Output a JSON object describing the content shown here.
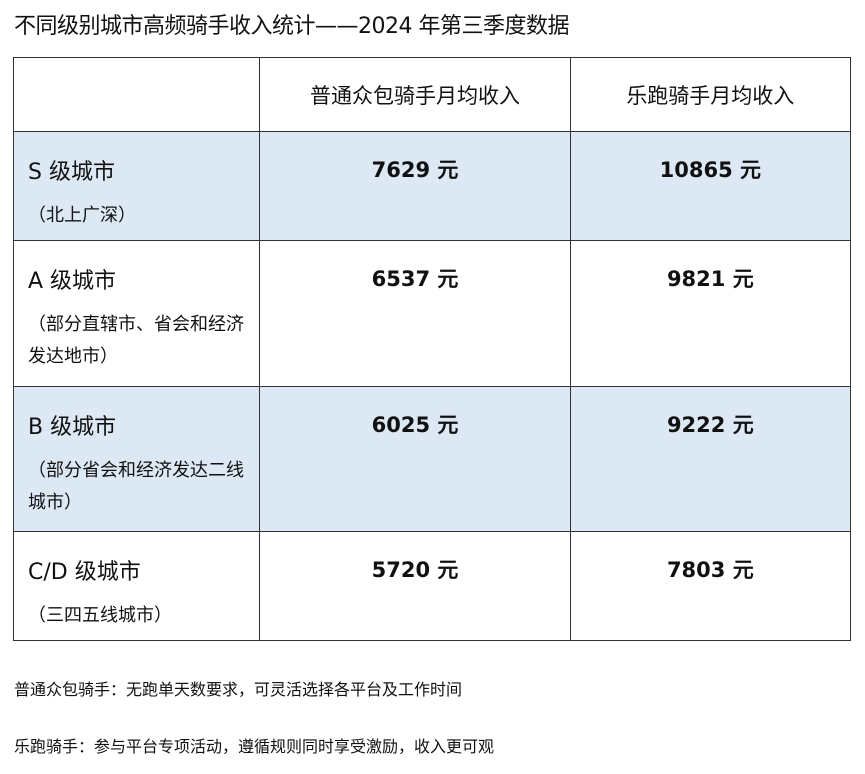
{
  "title": "不同级别城市高频骑手收入统计——2024 年第三季度数据",
  "table": {
    "headers": [
      "",
      "普通众包骑手月均收入",
      "乐跑骑手月均收入"
    ],
    "rows": [
      {
        "city": "S 级城市",
        "desc": "（北上广深）",
        "normal": "7629 元",
        "lepao": "10865 元",
        "highlight": true
      },
      {
        "city": "A 级城市",
        "desc": "（部分直辖市、省会和经济发达地市）",
        "normal": "6537 元",
        "lepao": "9821 元",
        "highlight": false
      },
      {
        "city": "B 级城市",
        "desc": "（部分省会和经济发达二线城市）",
        "normal": "6025 元",
        "lepao": "9222 元",
        "highlight": true
      },
      {
        "city": "C/D 级城市",
        "desc": "（三四五线城市）",
        "normal": "5720 元",
        "lepao": "7803 元",
        "highlight": false
      }
    ],
    "highlight_color": "#dde8f5"
  },
  "notes": [
    "普通众包骑手：无跑单天数要求，可灵活选择各平台及工作时间",
    "乐跑骑手：参与平台专项活动，遵循规则同时享受激励，收入更可观"
  ]
}
